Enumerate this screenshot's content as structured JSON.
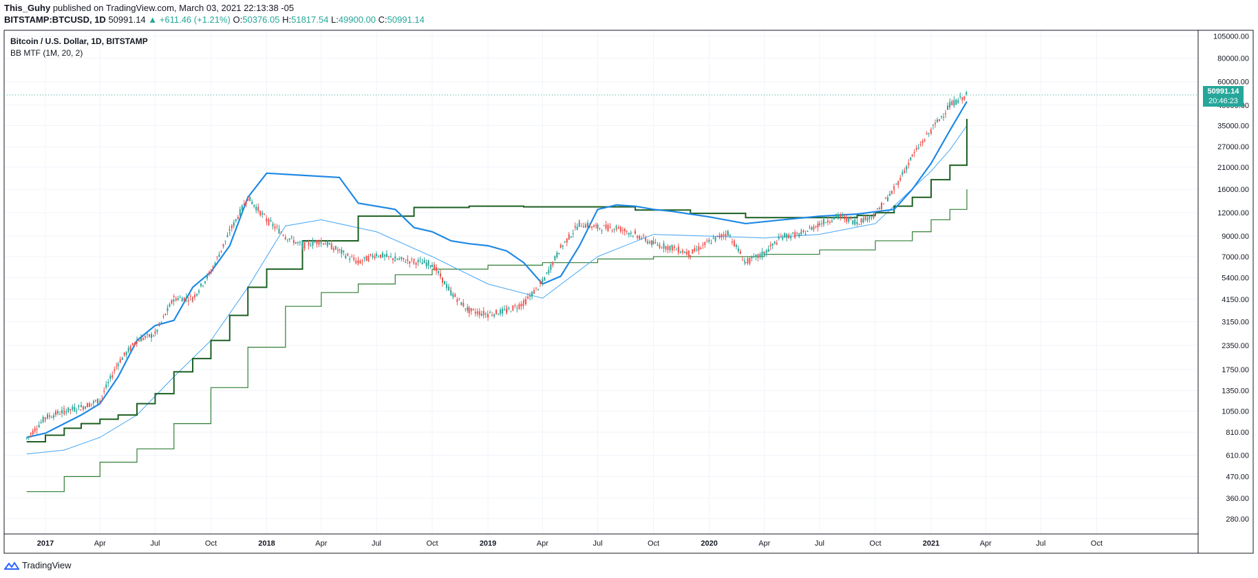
{
  "header": {
    "author": "This_Guhy",
    "published": "published on TradingView.com, March 03, 2021 22:13:38 -05",
    "symbol": "BITSTAMP:BTCUSD, 1D",
    "last": "50991.14",
    "change": "▲ +611.46 (+1.21%)",
    "o_label": "O:",
    "o_val": "50376.05",
    "h_label": "H:",
    "h_val": "51817.54",
    "l_label": "L:",
    "l_val": "49900.00",
    "c_label": "C:",
    "c_val": "50991.14"
  },
  "legend": {
    "title": "Bitcoin / U.S. Dollar, 1D, BITSTAMP",
    "indicator": "BB MTF (1M, 20, 2)"
  },
  "price_tag": {
    "price": "50991.14",
    "countdown": "20:46:23"
  },
  "footer": {
    "brand": "TradingView"
  },
  "colors": {
    "up": "#26a69a",
    "down": "#ef5350",
    "basis": "#1b5e20",
    "lower": "#2e7d32",
    "upper": "#1e88e5",
    "upper_thin": "#42a5f5",
    "grid": "#f0f3fa",
    "text": "#131722"
  },
  "chart_data": {
    "type": "line",
    "y_scale": "log",
    "ylim": [
      240,
      110000
    ],
    "y_ticks": [
      "105000.00",
      "80000.00",
      "60000.00",
      "45000.00",
      "35000.00",
      "27000.00",
      "21000.00",
      "16000.00",
      "12000.00",
      "9000.00",
      "7000.00",
      "5400.00",
      "4150.00",
      "3150.00",
      "2350.00",
      "1750.00",
      "1350.00",
      "1050.00",
      "810.00",
      "610.00",
      "470.00",
      "360.00",
      "280.00"
    ],
    "y_tick_values": [
      105000,
      80000,
      60000,
      45000,
      35000,
      27000,
      21000,
      16000,
      12000,
      9000,
      7000,
      5400,
      4150,
      3150,
      2350,
      1750,
      1350,
      1050,
      810,
      610,
      470,
      360,
      280
    ],
    "x_ticks": [
      "2017",
      "Apr",
      "Jul",
      "Oct",
      "2018",
      "Apr",
      "Jul",
      "Oct",
      "2019",
      "Apr",
      "Jul",
      "Oct",
      "2020",
      "Apr",
      "Jul",
      "Oct",
      "2021",
      "Apr",
      "Jul",
      "Oct"
    ],
    "x_tick_dates": [
      "2017-01",
      "2017-04",
      "2017-07",
      "2017-10",
      "2018-01",
      "2018-04",
      "2018-07",
      "2018-10",
      "2019-01",
      "2019-04",
      "2019-07",
      "2019-10",
      "2020-01",
      "2020-04",
      "2020-07",
      "2020-10",
      "2021-01",
      "2021-04",
      "2021-07",
      "2021-10"
    ],
    "x_bold_ticks": [
      "2017",
      "2018",
      "2019",
      "2020",
      "2021"
    ],
    "last_price": 50991.14,
    "series": [
      {
        "key": "price",
        "style": "candles",
        "x": [
          "2016-12",
          "2017-01",
          "2017-02",
          "2017-03",
          "2017-04",
          "2017-05",
          "2017-06",
          "2017-07",
          "2017-08",
          "2017-09",
          "2017-10",
          "2017-11",
          "2017-12",
          "2018-01",
          "2018-02",
          "2018-03",
          "2018-04",
          "2018-05",
          "2018-06",
          "2018-07",
          "2018-08",
          "2018-09",
          "2018-10",
          "2018-11",
          "2018-12",
          "2019-01",
          "2019-02",
          "2019-03",
          "2019-04",
          "2019-05",
          "2019-06",
          "2019-07",
          "2019-08",
          "2019-09",
          "2019-10",
          "2019-11",
          "2019-12",
          "2020-01",
          "2020-02",
          "2020-03",
          "2020-04",
          "2020-05",
          "2020-06",
          "2020-07",
          "2020-08",
          "2020-09",
          "2020-10",
          "2020-11",
          "2020-12",
          "2021-01",
          "2021-02",
          "2021-03"
        ],
        "values": [
          750,
          970,
          1050,
          1100,
          1200,
          1900,
          2500,
          2700,
          4200,
          4200,
          5800,
          9500,
          14500,
          11000,
          9000,
          8000,
          8500,
          7500,
          6500,
          7200,
          6800,
          6600,
          6400,
          4500,
          3600,
          3450,
          3600,
          3950,
          5100,
          7800,
          10500,
          10000,
          10000,
          9200,
          8200,
          7800,
          7250,
          8400,
          9400,
          6500,
          7300,
          9000,
          9200,
          10500,
          11500,
          10700,
          11800,
          16000,
          24000,
          33000,
          45000,
          50991
        ]
      },
      {
        "key": "basis",
        "style": "step",
        "x": [
          "2016-12",
          "2017-01",
          "2017-02",
          "2017-03",
          "2017-04",
          "2017-05",
          "2017-06",
          "2017-07",
          "2017-08",
          "2017-09",
          "2017-10",
          "2017-11",
          "2017-12",
          "2018-01",
          "2018-03",
          "2018-06",
          "2018-09",
          "2018-12",
          "2019-03",
          "2019-06",
          "2019-09",
          "2019-12",
          "2020-03",
          "2020-06",
          "2020-09",
          "2020-10",
          "2020-11",
          "2020-12",
          "2021-01",
          "2021-02",
          "2021-03"
        ],
        "values": [
          720,
          780,
          850,
          900,
          950,
          1000,
          1150,
          1300,
          1700,
          2000,
          2500,
          3400,
          4800,
          6000,
          8500,
          11500,
          12800,
          13000,
          12900,
          12900,
          12400,
          11900,
          11300,
          11300,
          11600,
          12000,
          13000,
          14500,
          18000,
          21500,
          38000
        ]
      },
      {
        "key": "upper",
        "style": "line",
        "x": [
          "2016-12",
          "2017-01",
          "2017-02",
          "2017-03",
          "2017-04",
          "2017-05",
          "2017-06",
          "2017-07",
          "2017-08",
          "2017-09",
          "2017-10",
          "2017-11",
          "2017-12",
          "2018-01",
          "2018-03",
          "2018-05",
          "2018-06",
          "2018-08",
          "2018-09",
          "2018-10",
          "2018-11",
          "2018-12",
          "2019-01",
          "2019-02",
          "2019-03",
          "2019-04",
          "2019-05",
          "2019-06",
          "2019-07",
          "2019-08",
          "2019-09",
          "2019-10",
          "2019-11",
          "2019-12",
          "2020-01",
          "2020-03",
          "2020-05",
          "2020-07",
          "2020-09",
          "2020-11",
          "2020-12",
          "2021-01",
          "2021-02",
          "2021-03"
        ],
        "values": [
          760,
          800,
          900,
          1000,
          1150,
          1600,
          2500,
          3000,
          3200,
          4800,
          5800,
          8000,
          14500,
          19500,
          19000,
          18500,
          13500,
          12500,
          10000,
          9500,
          8500,
          8200,
          8000,
          7500,
          6500,
          5000,
          5500,
          8000,
          12500,
          13200,
          13000,
          12500,
          12200,
          11800,
          11400,
          10500,
          11000,
          11500,
          11800,
          12500,
          16000,
          22000,
          33000,
          47000
        ]
      },
      {
        "key": "upper_thin",
        "style": "line",
        "x": [
          "2016-12",
          "2017-02",
          "2017-04",
          "2017-06",
          "2017-08",
          "2017-10",
          "2017-12",
          "2018-02",
          "2018-04",
          "2018-07",
          "2018-10",
          "2019-01",
          "2019-04",
          "2019-07",
          "2019-10",
          "2020-01",
          "2020-04",
          "2020-07",
          "2020-10",
          "2021-01",
          "2021-02",
          "2021-03"
        ],
        "values": [
          620,
          650,
          760,
          1000,
          1600,
          2500,
          4800,
          10200,
          11000,
          9500,
          7000,
          5000,
          4200,
          7000,
          9200,
          9000,
          8800,
          9200,
          10500,
          20000,
          26000,
          35000
        ]
      },
      {
        "key": "lower",
        "style": "step",
        "x": [
          "2016-12",
          "2017-02",
          "2017-04",
          "2017-06",
          "2017-08",
          "2017-10",
          "2017-12",
          "2018-02",
          "2018-04",
          "2018-06",
          "2018-08",
          "2018-10",
          "2019-01",
          "2019-04",
          "2019-07",
          "2019-10",
          "2020-01",
          "2020-04",
          "2020-07",
          "2020-10",
          "2020-12",
          "2021-01",
          "2021-02",
          "2021-03"
        ],
        "values": [
          390,
          470,
          560,
          660,
          900,
          1400,
          2300,
          3800,
          4500,
          5000,
          5600,
          6000,
          6300,
          6500,
          6800,
          7000,
          7000,
          7200,
          7600,
          8500,
          9500,
          11000,
          12500,
          16000
        ]
      }
    ]
  }
}
